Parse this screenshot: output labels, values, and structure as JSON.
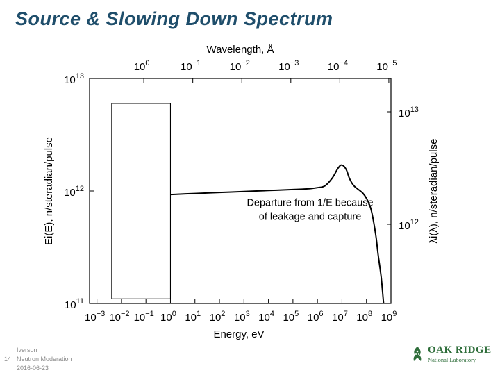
{
  "slide": {
    "title": "Source & Slowing Down Spectrum"
  },
  "chart_data": {
    "type": "line",
    "title": "",
    "xlabel": "Energy, eV",
    "x_scale": "log",
    "xlim": [
      0.0005,
      1000000000
    ],
    "x_ticks": [
      {
        "value": 0.001,
        "base": "10",
        "exp": "−3"
      },
      {
        "value": 0.01,
        "base": "10",
        "exp": "−2"
      },
      {
        "value": 0.1,
        "base": "10",
        "exp": "−1"
      },
      {
        "value": 1,
        "base": "10",
        "exp": "0"
      },
      {
        "value": 10,
        "base": "10",
        "exp": "1"
      },
      {
        "value": 100,
        "base": "10",
        "exp": "2"
      },
      {
        "value": 1000,
        "base": "10",
        "exp": "3"
      },
      {
        "value": 10000,
        "base": "10",
        "exp": "4"
      },
      {
        "value": 100000,
        "base": "10",
        "exp": "5"
      },
      {
        "value": 1000000,
        "base": "10",
        "exp": "6"
      },
      {
        "value": 10000000,
        "base": "10",
        "exp": "7"
      },
      {
        "value": 100000000,
        "base": "10",
        "exp": "8"
      },
      {
        "value": 1000000000,
        "base": "10",
        "exp": "9"
      }
    ],
    "x2label": "Wavelength, Å",
    "x2_ticks": [
      {
        "value": 1e-05,
        "base": "10",
        "exp": "−5"
      },
      {
        "value": 0.0001,
        "base": "10",
        "exp": "−4"
      },
      {
        "value": 0.001,
        "base": "10",
        "exp": "−3"
      },
      {
        "value": 0.01,
        "base": "10",
        "exp": "−2"
      },
      {
        "value": 0.1,
        "base": "10",
        "exp": "−1"
      },
      {
        "value": 1,
        "base": "10",
        "exp": "0"
      }
    ],
    "ylabel": "Ei(E), n/steradian/pulse",
    "y_scale": "log",
    "ylim": [
      100000000000,
      10000000000000
    ],
    "y_ticks": [
      {
        "value": 100000000000,
        "base": "10",
        "exp": "11"
      },
      {
        "value": 1000000000000,
        "base": "10",
        "exp": "12"
      },
      {
        "value": 10000000000000,
        "base": "10",
        "exp": "13"
      }
    ],
    "y2label": "λi(λ), n/steradian/pulse",
    "y2_ticks": [
      {
        "value": 1000000000000,
        "base": "10",
        "exp": "12"
      },
      {
        "value": 10000000000000,
        "base": "10",
        "exp": "13"
      }
    ],
    "grid": false,
    "series": [
      {
        "x": [
          1,
          3,
          10,
          100,
          1000,
          10000,
          100000,
          500000,
          1000000,
          2000000,
          4000000,
          7000000,
          10000000,
          15000000,
          20000000,
          30000000,
          50000000,
          70000000,
          100000000,
          150000000,
          200000000,
          250000000,
          300000000,
          400000000,
          500000000
        ],
        "y": [
          930000000000,
          940000000000,
          950000000000,
          970000000000,
          990000000000,
          1010000000000,
          1030000000000,
          1050000000000,
          1070000000000,
          1110000000000,
          1300000000000,
          1600000000000,
          1700000000000,
          1550000000000,
          1300000000000,
          1120000000000,
          1020000000000,
          960000000000,
          860000000000,
          700000000000,
          520000000000,
          380000000000,
          270000000000,
          170000000000,
          100000000000
        ]
      }
    ],
    "annotation": {
      "text_line1": "Departure from 1/E because",
      "text_line2": "of leakage and capture",
      "x": 500000,
      "y": 650000000000
    },
    "highlight_box": {
      "x_from": 0.004,
      "x_to": 1,
      "y_from": 110000000000,
      "y_to": 6000000000000
    }
  },
  "footer": {
    "page_number": "14",
    "author": "Iverson",
    "subject": "Neutron Moderation",
    "date": "2016-06-23"
  },
  "logo": {
    "name": "OAK RIDGE",
    "subtitle": "National Laboratory",
    "color": "#2f6e3b"
  }
}
